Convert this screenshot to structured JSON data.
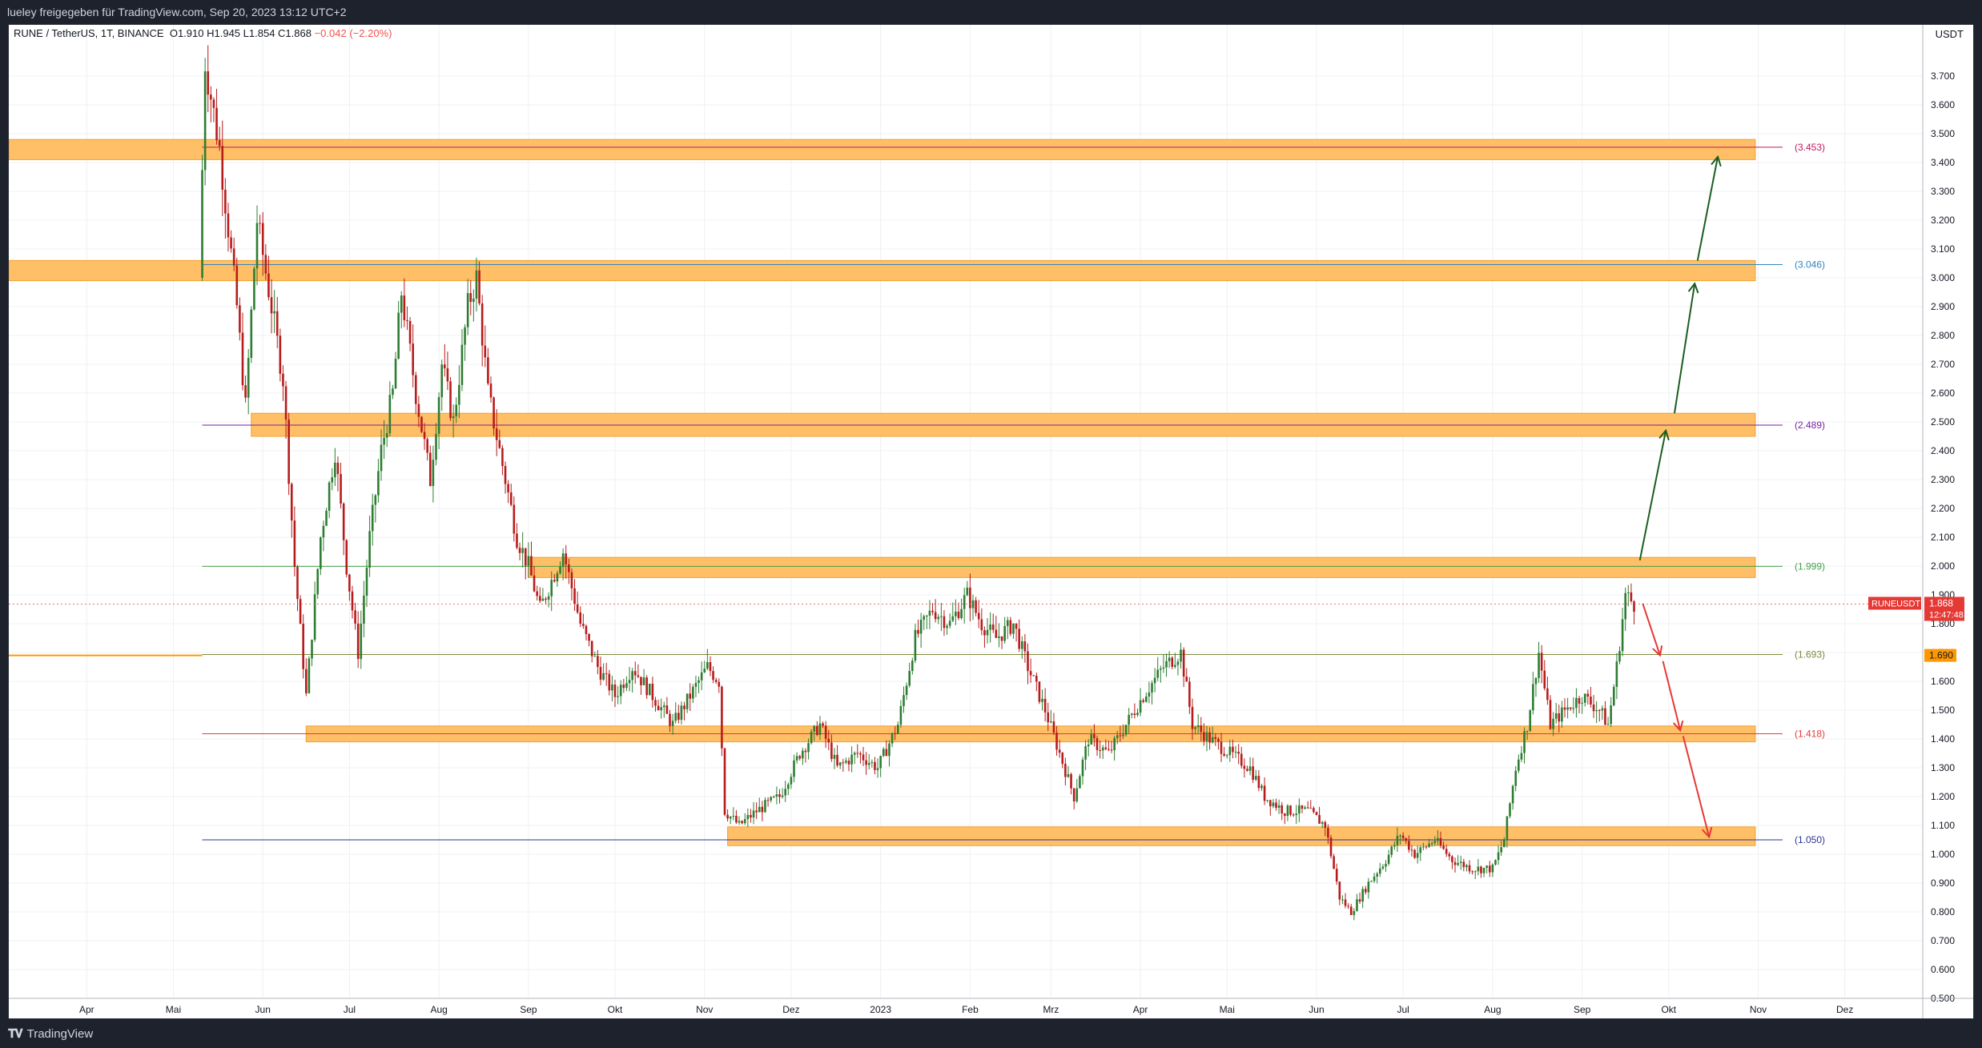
{
  "header": {
    "caption": "lueley freigegeben für TradingView.com, Sep 20, 2023 13:12 UTC+2"
  },
  "legend": {
    "symbol": "RUNE / TetherUS, 1T, BINANCE",
    "open": "O1.910",
    "high": "H1.945",
    "low": "L1.854",
    "close": "C1.868",
    "change": "−0.042 (−2.20%)"
  },
  "footer": {
    "brand": "TradingView",
    "logo_icon": "tv-logo-icon"
  },
  "colors": {
    "zone_fill": "#ffbf66",
    "zone_stroke": "#f0a030",
    "up": "#2e7d32",
    "down": "#b71c1c",
    "arrow_up": "#1b5e20",
    "arrow_down": "#e53935",
    "grid": "#eef0f4",
    "price_line": "#ff9800"
  },
  "chart_data": {
    "type": "candlestick",
    "title": "",
    "ylabel": "",
    "unit": "USDT",
    "ylim": [
      0.5,
      3.8
    ],
    "y_ticks": [
      "0.500",
      "0.600",
      "0.700",
      "0.800",
      "0.900",
      "1.000",
      "1.100",
      "1.200",
      "1.300",
      "1.400",
      "1.500",
      "1.600",
      "1.700",
      "1.800",
      "1.900",
      "2.000",
      "2.100",
      "2.200",
      "2.300",
      "2.400",
      "2.500",
      "2.600",
      "2.700",
      "2.800",
      "2.900",
      "3.000",
      "3.100",
      "3.200",
      "3.300",
      "3.400",
      "3.500",
      "3.600",
      "3.700"
    ],
    "x_range": [
      "2022-03-05",
      "2023-12-28"
    ],
    "x_ticks": [
      {
        "label": "Apr",
        "date": "2022-04-01"
      },
      {
        "label": "Mai",
        "date": "2022-05-01"
      },
      {
        "label": "Jun",
        "date": "2022-06-01"
      },
      {
        "label": "Jul",
        "date": "2022-07-01"
      },
      {
        "label": "Aug",
        "date": "2022-08-01"
      },
      {
        "label": "Sep",
        "date": "2022-09-01"
      },
      {
        "label": "Okt",
        "date": "2022-10-01"
      },
      {
        "label": "Nov",
        "date": "2022-11-01"
      },
      {
        "label": "Dez",
        "date": "2022-12-01"
      },
      {
        "label": "2023",
        "date": "2023-01-01"
      },
      {
        "label": "Feb",
        "date": "2023-02-01"
      },
      {
        "label": "Mrz",
        "date": "2023-03-01"
      },
      {
        "label": "Apr",
        "date": "2023-04-01"
      },
      {
        "label": "Mai",
        "date": "2023-05-01"
      },
      {
        "label": "Jun",
        "date": "2023-06-01"
      },
      {
        "label": "Jul",
        "date": "2023-07-01"
      },
      {
        "label": "Aug",
        "date": "2023-08-01"
      },
      {
        "label": "Sep",
        "date": "2023-09-01"
      },
      {
        "label": "Okt",
        "date": "2023-10-01"
      },
      {
        "label": "Nov",
        "date": "2023-11-01"
      },
      {
        "label": "Dez",
        "date": "2023-12-01"
      }
    ],
    "price_path": [
      [
        "2022-05-11",
        3.0
      ],
      [
        "2022-05-13",
        3.75
      ],
      [
        "2022-05-18",
        3.45
      ],
      [
        "2022-05-24",
        2.9
      ],
      [
        "2022-05-27",
        2.55
      ],
      [
        "2022-05-31",
        3.2
      ],
      [
        "2022-06-05",
        2.9
      ],
      [
        "2022-06-09",
        2.65
      ],
      [
        "2022-06-13",
        2.0
      ],
      [
        "2022-06-17",
        1.55
      ],
      [
        "2022-06-22",
        2.1
      ],
      [
        "2022-06-27",
        2.4
      ],
      [
        "2022-07-01",
        2.0
      ],
      [
        "2022-07-05",
        1.7
      ],
      [
        "2022-07-09",
        2.1
      ],
      [
        "2022-07-13",
        2.4
      ],
      [
        "2022-07-17",
        2.6
      ],
      [
        "2022-07-20",
        2.95
      ],
      [
        "2022-07-25",
        2.6
      ],
      [
        "2022-07-30",
        2.3
      ],
      [
        "2022-08-03",
        2.7
      ],
      [
        "2022-08-07",
        2.5
      ],
      [
        "2022-08-12",
        2.9
      ],
      [
        "2022-08-15",
        3.0
      ],
      [
        "2022-08-19",
        2.6
      ],
      [
        "2022-08-24",
        2.35
      ],
      [
        "2022-08-29",
        2.1
      ],
      [
        "2022-09-02",
        2.0
      ],
      [
        "2022-09-06",
        1.85
      ],
      [
        "2022-09-10",
        1.95
      ],
      [
        "2022-09-14",
        2.05
      ],
      [
        "2022-09-20",
        1.8
      ],
      [
        "2022-09-26",
        1.65
      ],
      [
        "2022-10-02",
        1.55
      ],
      [
        "2022-10-08",
        1.65
      ],
      [
        "2022-10-15",
        1.55
      ],
      [
        "2022-10-22",
        1.45
      ],
      [
        "2022-10-28",
        1.55
      ],
      [
        "2022-11-03",
        1.65
      ],
      [
        "2022-11-07",
        1.6
      ],
      [
        "2022-11-09",
        1.15
      ],
      [
        "2022-11-14",
        1.1
      ],
      [
        "2022-11-20",
        1.15
      ],
      [
        "2022-11-28",
        1.2
      ],
      [
        "2022-12-05",
        1.35
      ],
      [
        "2022-12-12",
        1.45
      ],
      [
        "2022-12-18",
        1.3
      ],
      [
        "2022-12-25",
        1.35
      ],
      [
        "2023-01-01",
        1.3
      ],
      [
        "2023-01-08",
        1.45
      ],
      [
        "2023-01-14",
        1.75
      ],
      [
        "2023-01-20",
        1.85
      ],
      [
        "2023-01-26",
        1.8
      ],
      [
        "2023-02-01",
        1.9
      ],
      [
        "2023-02-06",
        1.8
      ],
      [
        "2023-02-11",
        1.75
      ],
      [
        "2023-02-17",
        1.8
      ],
      [
        "2023-02-22",
        1.65
      ],
      [
        "2023-02-28",
        1.5
      ],
      [
        "2023-03-05",
        1.35
      ],
      [
        "2023-03-10",
        1.2
      ],
      [
        "2023-03-15",
        1.4
      ],
      [
        "2023-03-22",
        1.35
      ],
      [
        "2023-03-28",
        1.45
      ],
      [
        "2023-04-03",
        1.55
      ],
      [
        "2023-04-10",
        1.65
      ],
      [
        "2023-04-16",
        1.7
      ],
      [
        "2023-04-20",
        1.45
      ],
      [
        "2023-04-26",
        1.4
      ],
      [
        "2023-05-03",
        1.35
      ],
      [
        "2023-05-10",
        1.3
      ],
      [
        "2023-05-15",
        1.2
      ],
      [
        "2023-05-22",
        1.15
      ],
      [
        "2023-05-30",
        1.15
      ],
      [
        "2023-06-05",
        1.1
      ],
      [
        "2023-06-10",
        0.85
      ],
      [
        "2023-06-14",
        0.8
      ],
      [
        "2023-06-20",
        0.9
      ],
      [
        "2023-06-26",
        0.98
      ],
      [
        "2023-07-01",
        1.07
      ],
      [
        "2023-07-06",
        1.0
      ],
      [
        "2023-07-13",
        1.05
      ],
      [
        "2023-07-19",
        0.98
      ],
      [
        "2023-07-26",
        0.95
      ],
      [
        "2023-08-02",
        0.95
      ],
      [
        "2023-08-06",
        1.05
      ],
      [
        "2023-08-10",
        1.3
      ],
      [
        "2023-08-14",
        1.45
      ],
      [
        "2023-08-18",
        1.7
      ],
      [
        "2023-08-22",
        1.45
      ],
      [
        "2023-08-27",
        1.5
      ],
      [
        "2023-09-02",
        1.55
      ],
      [
        "2023-09-08",
        1.5
      ],
      [
        "2023-09-11",
        1.45
      ],
      [
        "2023-09-14",
        1.65
      ],
      [
        "2023-09-17",
        1.9
      ],
      [
        "2023-09-20",
        1.868
      ]
    ],
    "zones": [
      {
        "label": "(3.453)",
        "level": 3.453,
        "low": 3.41,
        "high": 3.48,
        "from": "2022-03-05",
        "to": "2023-10-31",
        "color": "#c2185b"
      },
      {
        "label": "(3.046)",
        "level": 3.046,
        "low": 2.99,
        "high": 3.06,
        "from": "2022-03-05",
        "to": "2023-10-31",
        "color": "#2e86c1"
      },
      {
        "label": "(2.489)",
        "level": 2.489,
        "low": 2.45,
        "high": 2.53,
        "from": "2022-05-28",
        "to": "2023-10-31",
        "color": "#7b1fa2"
      },
      {
        "label": "(1.999)",
        "level": 1.999,
        "low": 1.96,
        "high": 2.03,
        "from": "2022-09-01",
        "to": "2023-10-31",
        "color": "#43a047"
      },
      {
        "label": "(1.693)",
        "level": 1.693,
        "low": null,
        "high": null,
        "from": "2022-05-11",
        "to": "2023-10-31",
        "color": "#7c8a3a"
      },
      {
        "label": "(1.418)",
        "level": 1.418,
        "low": 1.39,
        "high": 1.445,
        "from": "2022-06-16",
        "to": "2023-10-31",
        "color": "#e53935"
      },
      {
        "label": "(1.050)",
        "level": 1.05,
        "low": 1.03,
        "high": 1.095,
        "from": "2022-11-09",
        "to": "2023-10-31",
        "color": "#283593"
      }
    ],
    "last_price": {
      "symbol": "RUNEUSDT",
      "value": "1.868",
      "countdown": "12:47:48",
      "price": 1.868
    },
    "price_line": {
      "label": "1.690",
      "price": 1.69
    },
    "arrows": [
      {
        "from": [
          "2023-09-21",
          2.02
        ],
        "to": [
          "2023-09-30",
          2.47
        ],
        "dir": "up"
      },
      {
        "from": [
          "2023-10-03",
          2.53
        ],
        "to": [
          "2023-10-10",
          2.98
        ],
        "dir": "up"
      },
      {
        "from": [
          "2023-10-11",
          3.06
        ],
        "to": [
          "2023-10-18",
          3.42
        ],
        "dir": "up"
      },
      {
        "from": [
          "2023-09-22",
          1.87
        ],
        "to": [
          "2023-09-28",
          1.69
        ],
        "dir": "down"
      },
      {
        "from": [
          "2023-09-29",
          1.67
        ],
        "to": [
          "2023-10-05",
          1.43
        ],
        "dir": "down"
      },
      {
        "from": [
          "2023-10-06",
          1.41
        ],
        "to": [
          "2023-10-15",
          1.06
        ],
        "dir": "down"
      }
    ]
  }
}
